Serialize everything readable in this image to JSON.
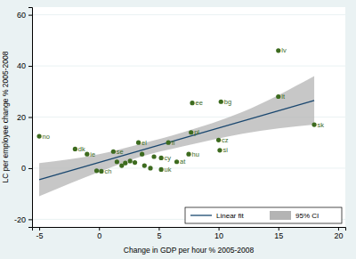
{
  "chart_data": {
    "type": "scatter",
    "x_label": "Change in GDP per hour % 2005-2008",
    "y_label": "LC per employee change % 2005-2008",
    "x": [
      -5,
      -2,
      -1,
      1.2,
      -0.2,
      0.2,
      1.5,
      1.9,
      2.2,
      2.6,
      3,
      3.3,
      3.6,
      3.8,
      4.3,
      4.6,
      5.2,
      5.2,
      6.5,
      7.5,
      5.8,
      7.7,
      7.8,
      10.2,
      10,
      10.1,
      15,
      15,
      18
    ],
    "values": [
      12.5,
      7.5,
      5.5,
      6.5,
      -1,
      -1.2,
      2.5,
      1,
      2,
      2.8,
      2.2,
      10,
      5.5,
      1,
      0,
      4.5,
      -0.5,
      4,
      2.5,
      5.5,
      10,
      14,
      25.5,
      26,
      11,
      7,
      46,
      28,
      17
    ],
    "labels": [
      "no",
      "dk",
      "ie",
      "se",
      null,
      "ch",
      null,
      null,
      null,
      null,
      null,
      "el",
      null,
      null,
      null,
      null,
      "uk",
      "cy",
      "at",
      "hu",
      "fi",
      "pl",
      "ee",
      "bg",
      "cz",
      "si",
      "lv",
      "lt",
      "sk"
    ],
    "color": "#3d6b1f",
    "marker": "circle",
    "fit": {
      "name": "Linear fit",
      "type": "line",
      "color": "#1a476f",
      "x": [
        -5,
        18
      ],
      "values": [
        -4.5,
        26.5
      ]
    },
    "ci": {
      "name": "95% CI",
      "type": "area",
      "color": "#b4b4b4",
      "x": [
        -5,
        0,
        3.5,
        7,
        12,
        18
      ],
      "lower": [
        -11,
        -1.5,
        4.5,
        8.5,
        13.5,
        17
      ],
      "upper": [
        2,
        5.5,
        9.5,
        14,
        22,
        36
      ]
    },
    "xlim": [
      -5.6,
      20.6
    ],
    "ylim": [
      -23,
      63
    ],
    "xticks": [
      -5,
      0,
      5,
      10,
      15,
      20
    ],
    "yticks": [
      -20,
      0,
      20,
      40,
      60
    ],
    "grid": true,
    "legend": "bottom-right"
  }
}
